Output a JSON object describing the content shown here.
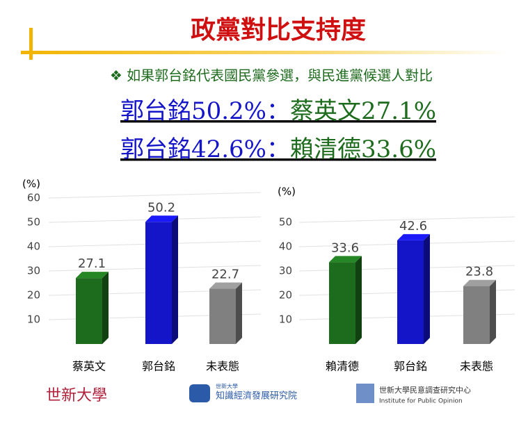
{
  "title": "政黨對比支持度",
  "subtitle": "❖ 如果郭台銘代表國民黨參選，與民進黨候選人對比",
  "headlines": [
    {
      "left": "郭台銘50.2%：",
      "right": "蔡英文27.1%"
    },
    {
      "left": "郭台銘42.6%：",
      "right": "賴清德33.6%"
    }
  ],
  "logos": {
    "left": "世新大學",
    "middle_small": "世新大學",
    "middle": "知識經濟發展研究院",
    "right": "世新大學民意調查研究中心",
    "right_en": "Institute for Public Opinion"
  },
  "chart_data": [
    {
      "type": "bar3d",
      "y_label": "(%)",
      "categories": [
        "蔡英文",
        "郭台銘",
        "未表態"
      ],
      "values": [
        27.1,
        50.2,
        22.7
      ],
      "colors": [
        "#1d6b1d",
        "#1414c8",
        "#808080"
      ],
      "ylim": [
        0,
        60
      ],
      "yticks": [
        10,
        20,
        30,
        40,
        50,
        60
      ],
      "grid": true
    },
    {
      "type": "bar3d",
      "y_label": "(%)",
      "categories": [
        "賴清德",
        "郭台銘",
        "未表態"
      ],
      "values": [
        33.6,
        42.6,
        23.8
      ],
      "colors": [
        "#1d6b1d",
        "#1414c8",
        "#808080"
      ],
      "ylim": [
        0,
        60
      ],
      "yticks": [
        10,
        20,
        30,
        40,
        50
      ],
      "grid": true
    }
  ]
}
